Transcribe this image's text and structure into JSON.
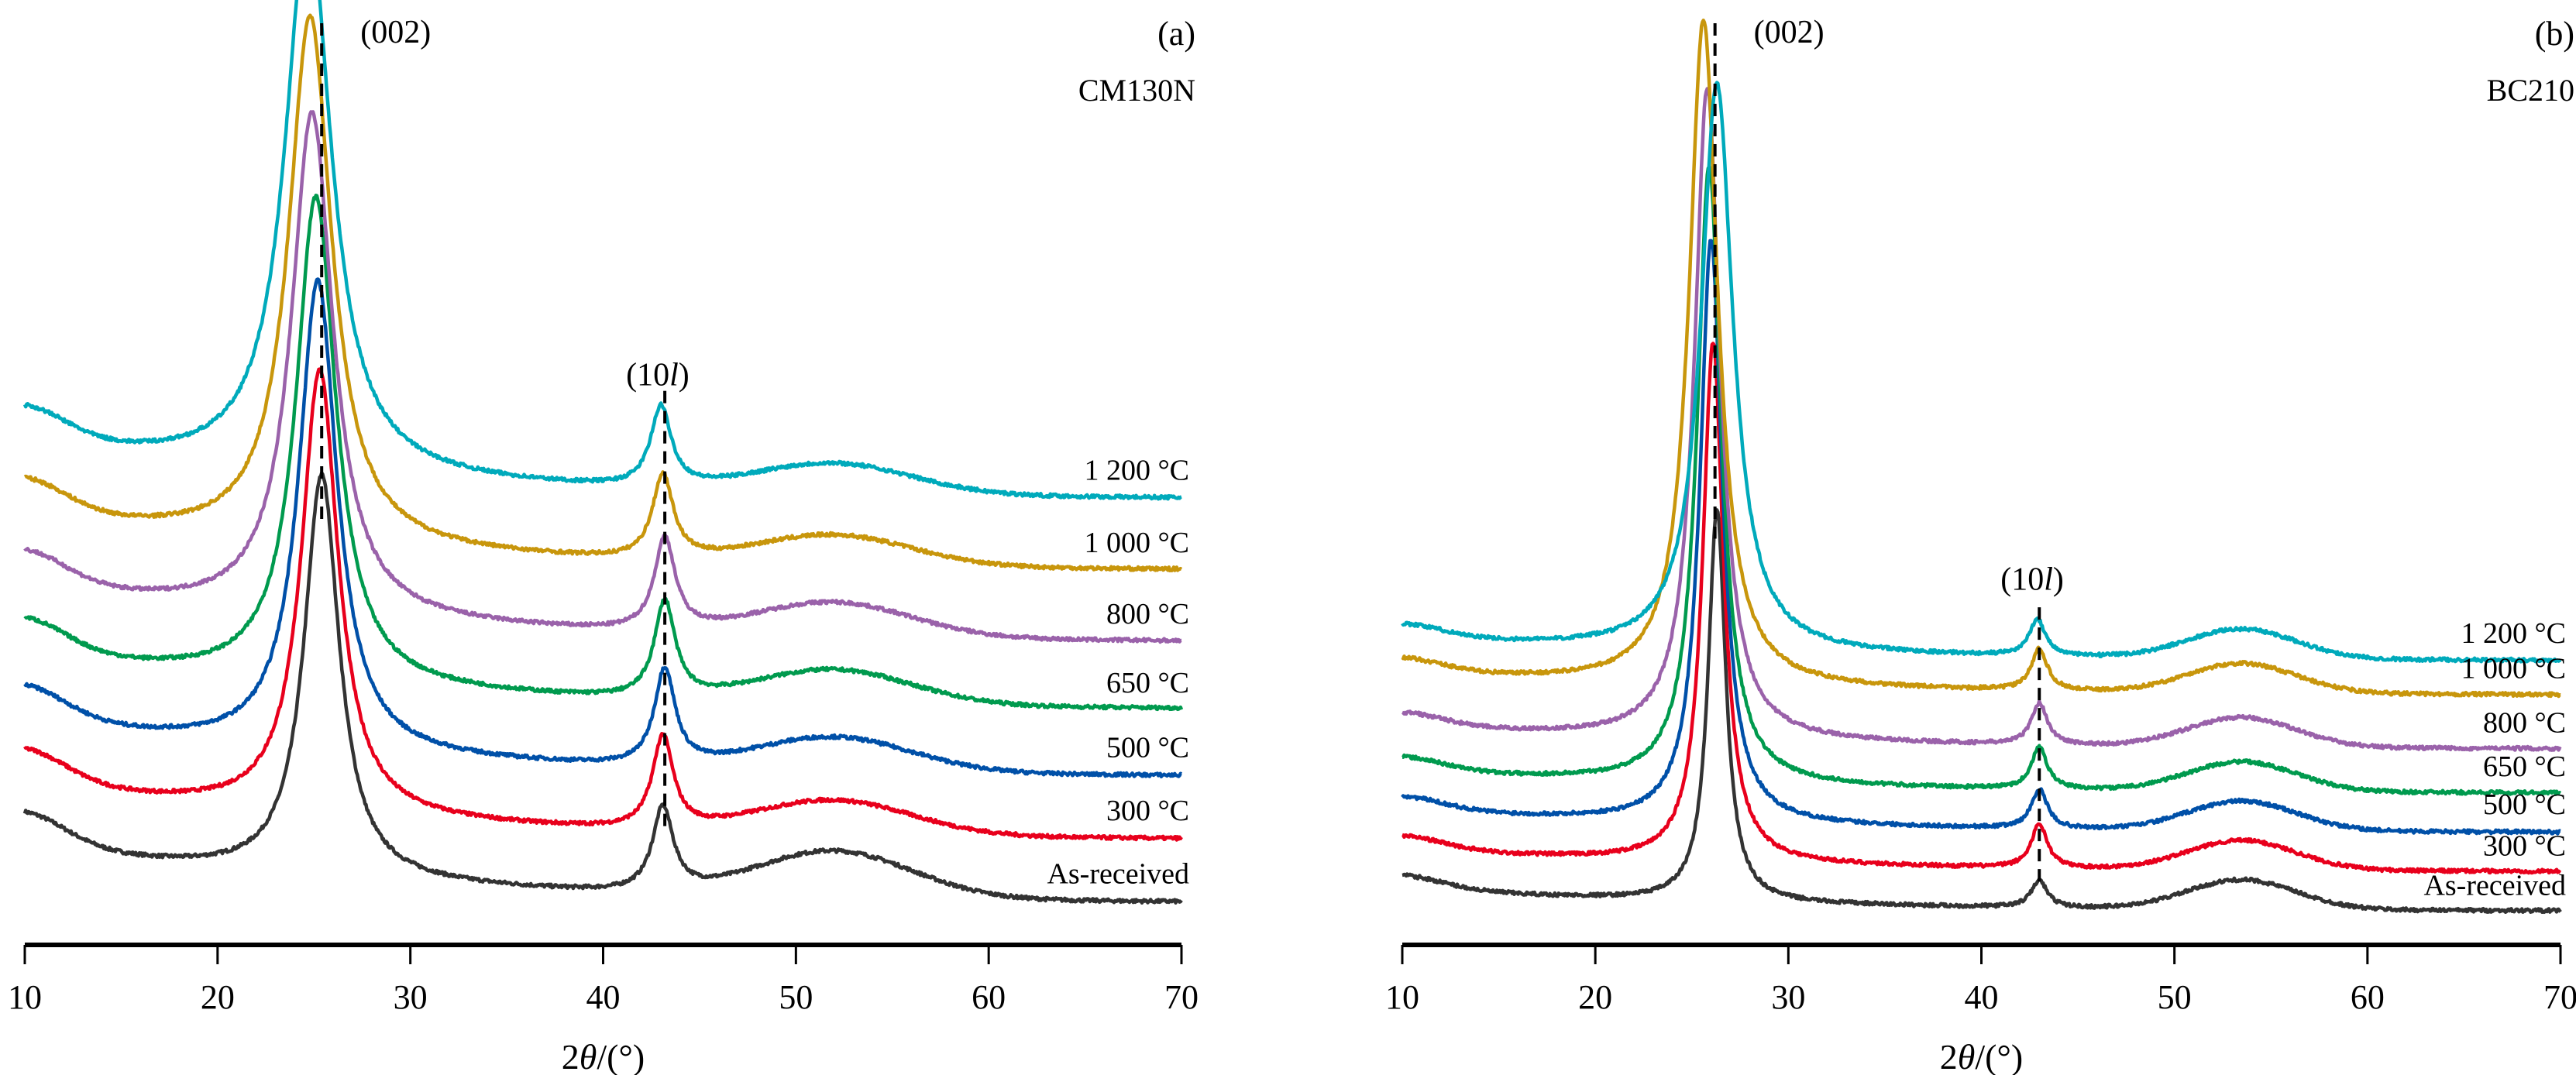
{
  "figure": {
    "panels_count": 2
  },
  "chart_data": [
    {
      "type": "line",
      "panel_tag": "(a)",
      "sample": "CM130N",
      "xlabel_prefix": "2",
      "xlabel_theta": "θ",
      "xlabel_suffix": "/(°)",
      "ylabel": "",
      "xlim": [
        10,
        70
      ],
      "xticks": [
        10,
        20,
        30,
        40,
        50,
        60,
        70
      ],
      "ylim": [
        0,
        10.5
      ],
      "grid": false,
      "legend": "inline-right",
      "annotations": [
        {
          "text": "(002)",
          "x": 25.4,
          "kind": "dashed-vline"
        },
        {
          "text_prefix": "(10",
          "text_italic": "l",
          "text_suffix": ")",
          "x": 43.2,
          "kind": "dashed-vline"
        }
      ],
      "series": [
        {
          "name": "As-received",
          "color": "#333333",
          "offset": 0.0,
          "base": [
            1.2,
            0.35,
            0.12
          ],
          "peak002": {
            "x": 25.4,
            "h": 4.8,
            "w": 2.2
          },
          "peak10l": {
            "x": 43.1,
            "h": 1.0,
            "w": 1.3
          },
          "hump": {
            "x": 52,
            "h": 0.55,
            "w": 4
          }
        },
        {
          "name": "300 °C",
          "color": "#e8001c",
          "offset": 0.75,
          "base": [
            1.2,
            0.35,
            0.12
          ],
          "peak002": {
            "x": 25.3,
            "h": 5.3,
            "w": 2.3
          },
          "peak10l": {
            "x": 43.1,
            "h": 1.1,
            "w": 1.3
          },
          "hump": {
            "x": 52,
            "h": 0.4,
            "w": 4
          }
        },
        {
          "name": "500 °C",
          "color": "#0050a8",
          "offset": 1.5,
          "base": [
            1.2,
            0.35,
            0.12
          ],
          "peak002": {
            "x": 25.2,
            "h": 5.6,
            "w": 2.4
          },
          "peak10l": {
            "x": 43.2,
            "h": 1.15,
            "w": 1.3
          },
          "hump": {
            "x": 52,
            "h": 0.4,
            "w": 4
          }
        },
        {
          "name": "650 °C",
          "color": "#009a4e",
          "offset": 2.3,
          "base": [
            1.2,
            0.35,
            0.12
          ],
          "peak002": {
            "x": 25.1,
            "h": 5.8,
            "w": 2.5
          },
          "peak10l": {
            "x": 43.2,
            "h": 1.15,
            "w": 1.3
          },
          "hump": {
            "x": 52,
            "h": 0.4,
            "w": 4
          }
        },
        {
          "name": "800 °C",
          "color": "#9a62aa",
          "offset": 3.1,
          "base": [
            1.2,
            0.35,
            0.12
          ],
          "peak002": {
            "x": 24.9,
            "h": 6.0,
            "w": 2.6
          },
          "peak10l": {
            "x": 43.2,
            "h": 1.1,
            "w": 1.3
          },
          "hump": {
            "x": 52,
            "h": 0.4,
            "w": 4
          }
        },
        {
          "name": "1 000 °C",
          "color": "#c8960c",
          "offset": 3.95,
          "base": [
            1.2,
            0.35,
            0.12
          ],
          "peak002": {
            "x": 24.8,
            "h": 6.3,
            "w": 2.7
          },
          "peak10l": {
            "x": 43.1,
            "h": 1.0,
            "w": 1.3
          },
          "hump": {
            "x": 52,
            "h": 0.35,
            "w": 4
          }
        },
        {
          "name": "1 200 °C",
          "color": "#00aabb",
          "offset": 4.8,
          "base": [
            1.2,
            0.35,
            0.12
          ],
          "peak002": {
            "x": 24.7,
            "h": 6.6,
            "w": 2.9
          },
          "peak10l": {
            "x": 43.0,
            "h": 0.95,
            "w": 1.3
          },
          "hump": {
            "x": 52,
            "h": 0.35,
            "w": 4
          }
        }
      ]
    },
    {
      "type": "line",
      "panel_tag": "(b)",
      "sample": "BC210",
      "xlabel_prefix": "2",
      "xlabel_theta": "θ",
      "xlabel_suffix": "/(°)",
      "ylabel": "",
      "xlim": [
        10,
        70
      ],
      "xticks": [
        10,
        20,
        30,
        40,
        50,
        60,
        70
      ],
      "ylim": [
        0,
        18
      ],
      "grid": false,
      "legend": "inline-right",
      "annotations": [
        {
          "text": "(002)",
          "x": 26.2,
          "kind": "dashed-vline"
        },
        {
          "text_prefix": "(10",
          "text_italic": "l",
          "text_suffix": ")",
          "x": 43.0,
          "kind": "dashed-vline"
        }
      ],
      "series": [
        {
          "name": "As-received",
          "color": "#333333",
          "offset": 0.0,
          "base": [
            0.8,
            0.25,
            0.05
          ],
          "peak002": {
            "x": 26.3,
            "h": 8.0,
            "w": 1.1
          },
          "peak10l": {
            "x": 43.0,
            "h": 0.55,
            "w": 1.0
          },
          "hump": {
            "x": 53.5,
            "h": 0.6,
            "w": 2.8
          }
        },
        {
          "name": "300 °C",
          "color": "#e8001c",
          "offset": 0.8,
          "base": [
            0.8,
            0.25,
            0.05
          ],
          "peak002": {
            "x": 26.1,
            "h": 10.6,
            "w": 1.3
          },
          "peak10l": {
            "x": 43.0,
            "h": 0.9,
            "w": 1.0
          },
          "hump": {
            "x": 53.5,
            "h": 0.6,
            "w": 2.8
          }
        },
        {
          "name": "500 °C",
          "color": "#0050a8",
          "offset": 1.6,
          "base": [
            0.8,
            0.25,
            0.05
          ],
          "peak002": {
            "x": 26.0,
            "h": 11.9,
            "w": 1.4
          },
          "peak10l": {
            "x": 43.0,
            "h": 0.8,
            "w": 1.0
          },
          "hump": {
            "x": 53.5,
            "h": 0.6,
            "w": 2.8
          }
        },
        {
          "name": "650 °C",
          "color": "#009a4e",
          "offset": 2.4,
          "base": [
            0.8,
            0.25,
            0.05
          ],
          "peak002": {
            "x": 25.9,
            "h": 12.6,
            "w": 1.5
          },
          "peak10l": {
            "x": 43.0,
            "h": 0.85,
            "w": 1.0
          },
          "hump": {
            "x": 53.5,
            "h": 0.6,
            "w": 2.8
          }
        },
        {
          "name": "800 °C",
          "color": "#9a62aa",
          "offset": 3.3,
          "base": [
            0.8,
            0.25,
            0.05
          ],
          "peak002": {
            "x": 25.8,
            "h": 13.3,
            "w": 1.6
          },
          "peak10l": {
            "x": 43.0,
            "h": 0.85,
            "w": 1.0
          },
          "hump": {
            "x": 53.5,
            "h": 0.6,
            "w": 2.8
          }
        },
        {
          "name": "1 000 °C",
          "color": "#c8960c",
          "offset": 4.4,
          "base": [
            0.8,
            0.25,
            0.05
          ],
          "peak002": {
            "x": 25.6,
            "h": 13.6,
            "w": 1.8
          },
          "peak10l": {
            "x": 43.0,
            "h": 0.85,
            "w": 1.0
          },
          "hump": {
            "x": 53.5,
            "h": 0.6,
            "w": 2.8
          }
        },
        {
          "name": "1 200 °C",
          "color": "#00aabb",
          "offset": 5.1,
          "base": [
            0.8,
            0.25,
            0.05
          ],
          "peak002": {
            "x": 26.3,
            "h": 11.6,
            "w": 2.0
          },
          "peak10l": {
            "x": 42.9,
            "h": 0.75,
            "w": 1.0
          },
          "hump": {
            "x": 53.5,
            "h": 0.6,
            "w": 2.8
          }
        }
      ]
    }
  ]
}
